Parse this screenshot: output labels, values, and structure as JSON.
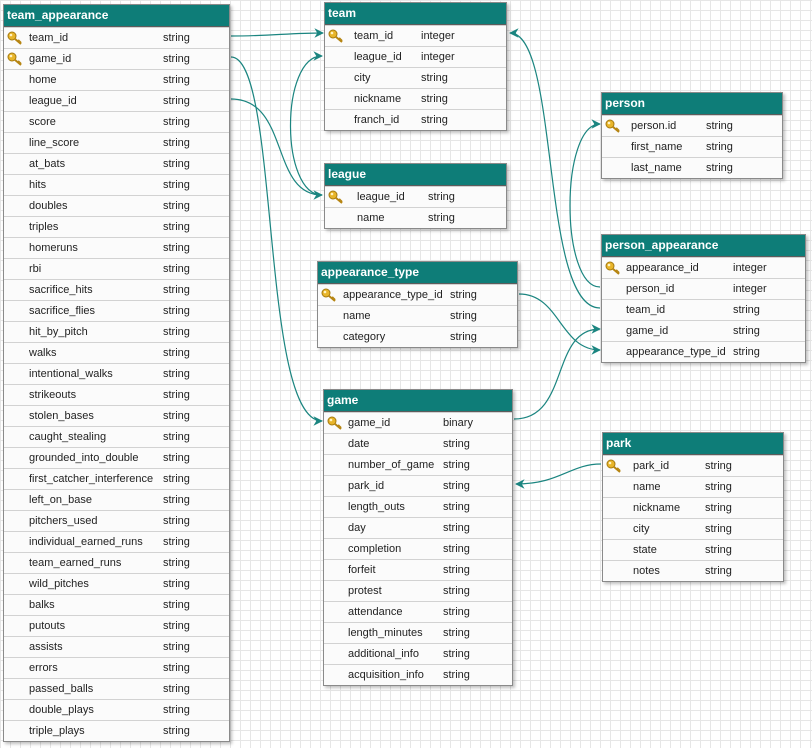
{
  "tables": [
    {
      "name": "team_appearance",
      "columns": [
        {
          "name": "team_id",
          "type": "string",
          "key": true
        },
        {
          "name": "game_id",
          "type": "string",
          "key": true
        },
        {
          "name": "home",
          "type": "string"
        },
        {
          "name": "league_id",
          "type": "string"
        },
        {
          "name": "score",
          "type": "string"
        },
        {
          "name": "line_score",
          "type": "string"
        },
        {
          "name": "at_bats",
          "type": "string"
        },
        {
          "name": "hits",
          "type": "string"
        },
        {
          "name": "doubles",
          "type": "string"
        },
        {
          "name": "triples",
          "type": "string"
        },
        {
          "name": "homeruns",
          "type": "string"
        },
        {
          "name": "rbi",
          "type": "string"
        },
        {
          "name": "sacrifice_hits",
          "type": "string"
        },
        {
          "name": "sacrifice_flies",
          "type": "string"
        },
        {
          "name": "hit_by_pitch",
          "type": "string"
        },
        {
          "name": "walks",
          "type": "string"
        },
        {
          "name": "intentional_walks",
          "type": "string"
        },
        {
          "name": "strikeouts",
          "type": "string"
        },
        {
          "name": "stolen_bases",
          "type": "string"
        },
        {
          "name": "caught_stealing",
          "type": "string"
        },
        {
          "name": "grounded_into_double",
          "type": "string"
        },
        {
          "name": "first_catcher_interference",
          "type": "string"
        },
        {
          "name": "left_on_base",
          "type": "string"
        },
        {
          "name": "pitchers_used",
          "type": "string"
        },
        {
          "name": "individual_earned_runs",
          "type": "string"
        },
        {
          "name": "team_earned_runs",
          "type": "string"
        },
        {
          "name": "wild_pitches",
          "type": "string"
        },
        {
          "name": "balks",
          "type": "string"
        },
        {
          "name": "putouts",
          "type": "string"
        },
        {
          "name": "assists",
          "type": "string"
        },
        {
          "name": "errors",
          "type": "string"
        },
        {
          "name": "passed_balls",
          "type": "string"
        },
        {
          "name": "double_plays",
          "type": "string"
        },
        {
          "name": "triple_plays",
          "type": "string"
        }
      ]
    },
    {
      "name": "team",
      "columns": [
        {
          "name": "team_id",
          "type": "integer",
          "key": true
        },
        {
          "name": "league_id",
          "type": "integer"
        },
        {
          "name": "city",
          "type": "string"
        },
        {
          "name": "nickname",
          "type": "string"
        },
        {
          "name": "franch_id",
          "type": "string"
        }
      ]
    },
    {
      "name": "league",
      "columns": [
        {
          "name": "league_id",
          "type": "string",
          "key": true
        },
        {
          "name": "name",
          "type": "string"
        }
      ]
    },
    {
      "name": "appearance_type",
      "columns": [
        {
          "name": "appearance_type_id",
          "type": "string",
          "key": true
        },
        {
          "name": "name",
          "type": "string"
        },
        {
          "name": "category",
          "type": "string"
        }
      ]
    },
    {
      "name": "game",
      "columns": [
        {
          "name": "game_id",
          "type": "binary",
          "key": true
        },
        {
          "name": "date",
          "type": "string"
        },
        {
          "name": "number_of_game",
          "type": "string"
        },
        {
          "name": "park_id",
          "type": "string"
        },
        {
          "name": "length_outs",
          "type": "string"
        },
        {
          "name": "day",
          "type": "string"
        },
        {
          "name": "completion",
          "type": "string"
        },
        {
          "name": "forfeit",
          "type": "string"
        },
        {
          "name": "protest",
          "type": "string"
        },
        {
          "name": "attendance",
          "type": "string"
        },
        {
          "name": "length_minutes",
          "type": "string"
        },
        {
          "name": "additional_info",
          "type": "string"
        },
        {
          "name": "acquisition_info",
          "type": "string"
        }
      ]
    },
    {
      "name": "person",
      "columns": [
        {
          "name": "person.id",
          "type": "string",
          "key": true
        },
        {
          "name": "first_name",
          "type": "string"
        },
        {
          "name": "last_name",
          "type": "string"
        }
      ]
    },
    {
      "name": "person_appearance",
      "columns": [
        {
          "name": "appearance_id",
          "type": "integer",
          "key": true
        },
        {
          "name": "person_id",
          "type": "integer"
        },
        {
          "name": "team_id",
          "type": "string"
        },
        {
          "name": "game_id",
          "type": "string"
        },
        {
          "name": "appearance_type_id",
          "type": "string"
        }
      ]
    },
    {
      "name": "park",
      "columns": [
        {
          "name": "park_id",
          "type": "string",
          "key": true
        },
        {
          "name": "name",
          "type": "string"
        },
        {
          "name": "nickname",
          "type": "string"
        },
        {
          "name": "city",
          "type": "string"
        },
        {
          "name": "state",
          "type": "string"
        },
        {
          "name": "notes",
          "type": "string"
        }
      ]
    }
  ]
}
